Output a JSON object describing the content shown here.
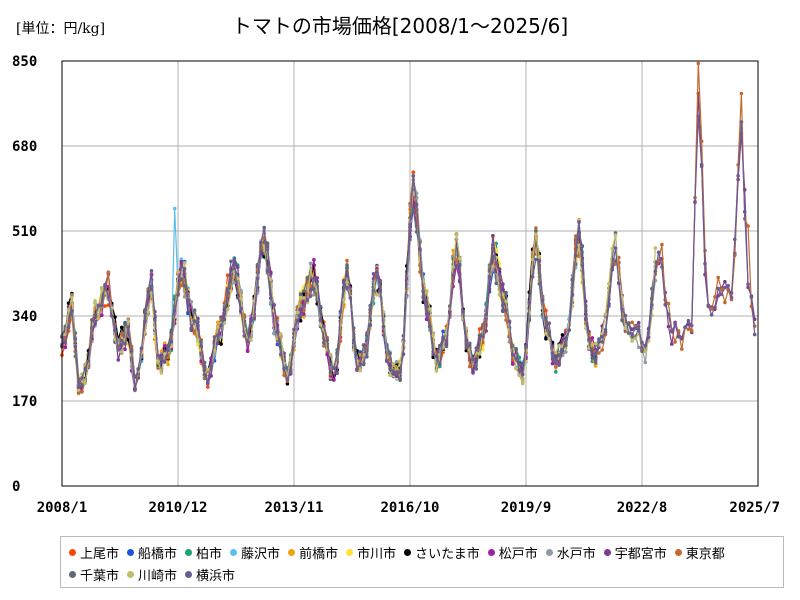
{
  "unit_label": "[単位：円/kg]",
  "chart_data": {
    "type": "line",
    "title": "トマトの市場価格[2008/1～2025/6]",
    "ylim": [
      0,
      850
    ],
    "yticks": [
      0,
      170,
      340,
      510,
      680,
      850
    ],
    "xrange": [
      "2008-01",
      "2025-07"
    ],
    "xticks": [
      "2008/1",
      "2010/12",
      "2013/11",
      "2016/10",
      "2019/9",
      "2022/8",
      "2025/7"
    ],
    "grid": true,
    "legend_position": "bottom",
    "series": [
      {
        "name": "上尾市",
        "color": "#ff4500",
        "last_month": "2021-06"
      },
      {
        "name": "船橋市",
        "color": "#1e56d6",
        "last_month": "2021-06"
      },
      {
        "name": "柏市",
        "color": "#1aa37a",
        "last_month": "2021-06"
      },
      {
        "name": "藤沢市",
        "color": "#5bc0eb",
        "last_month": "2021-06"
      },
      {
        "name": "前橋市",
        "color": "#f0a30a",
        "last_month": "2021-06"
      },
      {
        "name": "市川市",
        "color": "#ffe033",
        "last_month": "2021-06"
      },
      {
        "name": "さいたま市",
        "color": "#000000",
        "last_month": "2021-06"
      },
      {
        "name": "松戸市",
        "color": "#9b1fa8",
        "last_month": "2021-06"
      },
      {
        "name": "水戸市",
        "color": "#8e9aa5",
        "last_month": "2022-12"
      },
      {
        "name": "宇都宮市",
        "color": "#7e3b8f",
        "last_month": "2025-06"
      },
      {
        "name": "東京都",
        "color": "#c46a2c",
        "last_month": "2025-06"
      },
      {
        "name": "千葉市",
        "color": "#5e6a7a",
        "last_month": "2022-12"
      },
      {
        "name": "川崎市",
        "color": "#c2bd6a",
        "last_month": "2022-12"
      },
      {
        "name": "横浜市",
        "color": "#6b5b95",
        "last_month": "2025-06"
      }
    ],
    "base_anchors": [
      [
        "2008-01",
        280
      ],
      [
        "2008-04",
        360
      ],
      [
        "2008-06",
        200
      ],
      [
        "2008-08",
        220
      ],
      [
        "2008-11",
        340
      ],
      [
        "2009-03",
        400
      ],
      [
        "2009-06",
        280
      ],
      [
        "2009-09",
        310
      ],
      [
        "2009-11",
        200
      ],
      [
        "2010-04",
        400
      ],
      [
        "2010-06",
        240
      ],
      [
        "2010-09",
        270
      ],
      [
        "2011-01",
        430
      ],
      [
        "2011-05",
        320
      ],
      [
        "2011-09",
        220
      ],
      [
        "2011-12",
        300
      ],
      [
        "2012-05",
        430
      ],
      [
        "2012-09",
        300
      ],
      [
        "2013-02",
        480
      ],
      [
        "2013-06",
        310
      ],
      [
        "2013-09",
        220
      ],
      [
        "2014-01",
        360
      ],
      [
        "2014-05",
        420
      ],
      [
        "2014-08",
        300
      ],
      [
        "2014-11",
        220
      ],
      [
        "2015-03",
        420
      ],
      [
        "2015-06",
        250
      ],
      [
        "2015-08",
        260
      ],
      [
        "2015-12",
        420
      ],
      [
        "2016-04",
        240
      ],
      [
        "2016-07",
        230
      ],
      [
        "2016-11",
        580
      ],
      [
        "2017-03",
        360
      ],
      [
        "2017-06",
        250
      ],
      [
        "2017-09",
        300
      ],
      [
        "2017-12",
        480
      ],
      [
        "2018-03",
        290
      ],
      [
        "2018-05",
        240
      ],
      [
        "2018-08",
        300
      ],
      [
        "2018-11",
        460
      ],
      [
        "2019-03",
        360
      ],
      [
        "2019-05",
        260
      ],
      [
        "2019-08",
        230
      ],
      [
        "2019-12",
        480
      ],
      [
        "2020-03",
        320
      ],
      [
        "2020-06",
        250
      ],
      [
        "2020-09",
        290
      ],
      [
        "2021-01",
        500
      ],
      [
        "2021-04",
        290
      ],
      [
        "2021-06",
        260
      ],
      [
        "2021-08",
        300
      ],
      [
        "2021-12",
        470
      ],
      [
        "2022-03",
        320
      ],
      [
        "2022-07",
        300
      ],
      [
        "2022-09",
        270
      ],
      [
        "2023-01",
        470
      ],
      [
        "2023-05",
        310
      ],
      [
        "2023-08",
        300
      ],
      [
        "2023-11",
        330
      ],
      [
        "2024-01",
        790
      ],
      [
        "2024-04",
        340
      ],
      [
        "2024-08",
        400
      ],
      [
        "2024-11",
        380
      ],
      [
        "2025-02",
        710
      ],
      [
        "2025-04",
        400
      ],
      [
        "2025-06",
        330
      ]
    ],
    "peak_overrides": [
      {
        "series": "東京都",
        "month": "2024-01",
        "value": 845
      },
      {
        "series": "東京都",
        "month": "2025-02",
        "value": 785
      },
      {
        "series": "東京都",
        "month": "2025-04",
        "value": 520
      },
      {
        "series": "宇都宮市",
        "month": "2024-01",
        "value": 785
      },
      {
        "series": "宇都宮市",
        "month": "2025-02",
        "value": 705
      },
      {
        "series": "藤沢市",
        "month": "2010-11",
        "value": 555
      },
      {
        "series": "東京都",
        "month": "2016-11",
        "value": 620
      }
    ]
  }
}
